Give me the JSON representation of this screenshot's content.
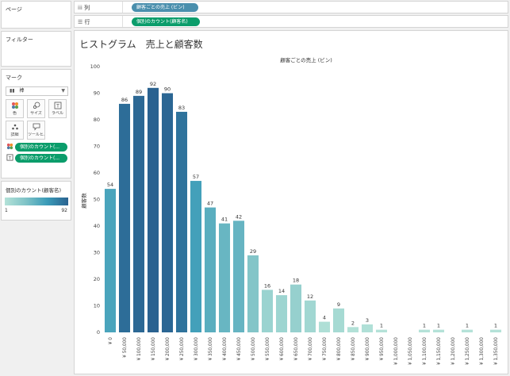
{
  "pages": {
    "title": "ページ"
  },
  "filters": {
    "title": "フィルター"
  },
  "marks": {
    "title": "マーク",
    "mark_type": "棒",
    "buttons": [
      "色",
      "サイズ",
      "ラベル",
      "詳細",
      "ツールヒ..."
    ],
    "pills": [
      "個別のカウント(...",
      "個別のカウント(..."
    ]
  },
  "legend": {
    "title": "個別のカウント(顧客名)",
    "min": "1",
    "max": "92",
    "colors": [
      "#b4e2d8",
      "#2a6290"
    ]
  },
  "shelves": {
    "columns_label": "列",
    "rows_label": "行",
    "columns_pill": "顧客ごとの売上 (ビン)",
    "rows_pill": "個別のカウント(顧客名)"
  },
  "view": {
    "title": "ヒストグラム　売上と顧客数"
  },
  "chart_data": {
    "type": "bar",
    "title": "顧客ごとの売上 (ビン)",
    "xlabel": "",
    "ylabel": "顧客数",
    "ylim": [
      0,
      100
    ],
    "yticks": [
      0,
      10,
      20,
      30,
      40,
      50,
      60,
      70,
      80,
      90,
      100
    ],
    "grid": false,
    "categories": [
      "¥ 0",
      "¥ 50,000",
      "¥ 100,000",
      "¥ 150,000",
      "¥ 200,000",
      "¥ 250,000",
      "¥ 300,000",
      "¥ 350,000",
      "¥ 400,000",
      "¥ 450,000",
      "¥ 500,000",
      "¥ 550,000",
      "¥ 600,000",
      "¥ 650,000",
      "¥ 700,000",
      "¥ 750,000",
      "¥ 800,000",
      "¥ 850,000",
      "¥ 900,000",
      "¥ 950,000",
      "¥ 1,000,000",
      "¥ 1,050,000",
      "¥ 1,100,000",
      "¥ 1,150,000",
      "¥ 1,200,000",
      "¥ 1,250,000",
      "¥ 1,300,000",
      "¥ 1,350,000"
    ],
    "values": [
      54,
      86,
      89,
      92,
      90,
      83,
      57,
      47,
      41,
      42,
      29,
      16,
      14,
      18,
      12,
      4,
      9,
      2,
      3,
      1,
      null,
      null,
      1,
      1,
      null,
      1,
      null,
      1
    ],
    "color_range": [
      1,
      92
    ]
  }
}
